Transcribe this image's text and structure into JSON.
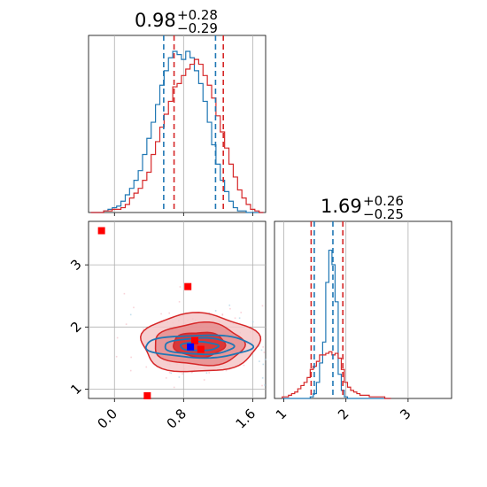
{
  "chart_data": {
    "type": "corner",
    "parameters": [
      {
        "title": {
          "value": "0.98",
          "plus": "+0.28",
          "minus": "−0.29"
        },
        "axis_range": [
          -0.3,
          1.75
        ],
        "ticks": [
          0.0,
          0.8,
          1.6
        ],
        "tick_labels": [
          "0.0",
          "0.8",
          "1.6"
        ],
        "quantiles": {
          "blue": [
            0.57,
            1.17
          ],
          "red": [
            0.69,
            1.26
          ]
        }
      },
      {
        "title": {
          "value": "1.69",
          "plus": "+0.26",
          "minus": "−0.25"
        },
        "axis_range": [
          0.85,
          3.7
        ],
        "ticks": [
          1,
          2,
          3
        ],
        "tick_labels": [
          "1",
          "2",
          "3"
        ],
        "quantiles": {
          "blue": [
            1.49,
            1.79
          ],
          "red": [
            1.44,
            1.95
          ]
        }
      }
    ],
    "series": [
      {
        "color": "#d62728"
      },
      {
        "color": "#1f77b4"
      }
    ],
    "histogram_bins": {
      "p1": [
        -0.25,
        -0.2,
        -0.15,
        -0.1,
        -0.05,
        0.0,
        0.05,
        0.1,
        0.15,
        0.2,
        0.25,
        0.3,
        0.35,
        0.4,
        0.45,
        0.5,
        0.55,
        0.6,
        0.65,
        0.7,
        0.75,
        0.8,
        0.85,
        0.9,
        0.95,
        1.0,
        1.05,
        1.1,
        1.15,
        1.2,
        1.25,
        1.3,
        1.35,
        1.4,
        1.45,
        1.5,
        1.55,
        1.6,
        1.65,
        1.7
      ],
      "p1_red": [
        0,
        0,
        0,
        0.01,
        0.01,
        0.02,
        0.02,
        0.03,
        0.05,
        0.09,
        0.12,
        0.15,
        0.2,
        0.25,
        0.36,
        0.44,
        0.53,
        0.61,
        0.69,
        0.78,
        0.8,
        0.85,
        0.89,
        0.92,
        0.95,
        0.92,
        0.85,
        0.79,
        0.71,
        0.6,
        0.5,
        0.4,
        0.3,
        0.22,
        0.14,
        0.09,
        0.05,
        0.02,
        0.01,
        0
      ],
      "p1_blue": [
        0,
        0,
        0,
        0.01,
        0.02,
        0.03,
        0.04,
        0.07,
        0.11,
        0.15,
        0.2,
        0.26,
        0.36,
        0.46,
        0.56,
        0.67,
        0.79,
        0.88,
        0.96,
        1.0,
        0.98,
        0.95,
        1.0,
        0.96,
        0.88,
        0.8,
        0.69,
        0.56,
        0.42,
        0.3,
        0.2,
        0.13,
        0.07,
        0.03,
        0.01,
        0.01,
        0,
        0,
        0,
        0
      ],
      "p2": [
        1.0,
        1.05,
        1.1,
        1.15,
        1.2,
        1.25,
        1.3,
        1.35,
        1.4,
        1.45,
        1.5,
        1.55,
        1.6,
        1.65,
        1.7,
        1.75,
        1.8,
        1.85,
        1.9,
        1.95,
        2.0,
        2.05,
        2.1,
        2.15,
        2.2,
        2.25,
        2.3,
        2.35,
        2.4,
        2.45,
        2.5,
        2.55,
        2.6,
        2.65,
        2.7
      ],
      "p2_red": [
        0.01,
        0.01,
        0.02,
        0.03,
        0.04,
        0.06,
        0.08,
        0.1,
        0.13,
        0.18,
        0.2,
        0.23,
        0.27,
        0.27,
        0.28,
        0.29,
        0.27,
        0.28,
        0.25,
        0.18,
        0.1,
        0.07,
        0.05,
        0.04,
        0.03,
        0.02,
        0.02,
        0.02,
        0.01,
        0.01,
        0.01,
        0.01,
        0.01,
        0,
        0
      ],
      "p2_blue": [
        0,
        0,
        0,
        0,
        0,
        0,
        0,
        0,
        0,
        0.01,
        0.03,
        0.1,
        0.22,
        0.35,
        0.72,
        0.92,
        0.83,
        0.6,
        0.15,
        0.05,
        0.01,
        0,
        0,
        0,
        0,
        0,
        0,
        0,
        0,
        0,
        0,
        0,
        0,
        0,
        0
      ]
    },
    "points": [
      {
        "x": -0.15,
        "y": 3.55,
        "color": "#ff0000"
      },
      {
        "x": 0.85,
        "y": 2.65,
        "color": "#ff0000"
      },
      {
        "x": 0.93,
        "y": 1.78,
        "color": "#ff0000"
      },
      {
        "x": 1.0,
        "y": 1.64,
        "color": "#ff0000"
      },
      {
        "x": 0.88,
        "y": 1.68,
        "color": "#0000ff"
      },
      {
        "x": 0.38,
        "y": 0.85,
        "color": "#ff0000"
      }
    ],
    "contours": {
      "red": [
        {
          "cx": 0.98,
          "cy": 1.72,
          "rx": 0.3,
          "ry": 0.2,
          "fill": "#d62728",
          "fill_opacity": 0.85
        },
        {
          "cx": 0.98,
          "cy": 1.72,
          "rx": 0.52,
          "ry": 0.34,
          "fill": "#e5888a",
          "fill_opacity": 0.8
        },
        {
          "cx": 0.98,
          "cy": 1.74,
          "rx": 0.68,
          "ry": 0.47,
          "fill": "#f4c7c8",
          "fill_opacity": 0.85
        }
      ],
      "blue": [
        {
          "cx": 0.98,
          "cy": 1.69,
          "rx": 0.22,
          "ry": 0.07
        },
        {
          "cx": 0.98,
          "cy": 1.69,
          "rx": 0.4,
          "ry": 0.13
        },
        {
          "cx": 0.98,
          "cy": 1.69,
          "rx": 0.62,
          "ry": 0.18
        }
      ]
    },
    "grid": true
  }
}
